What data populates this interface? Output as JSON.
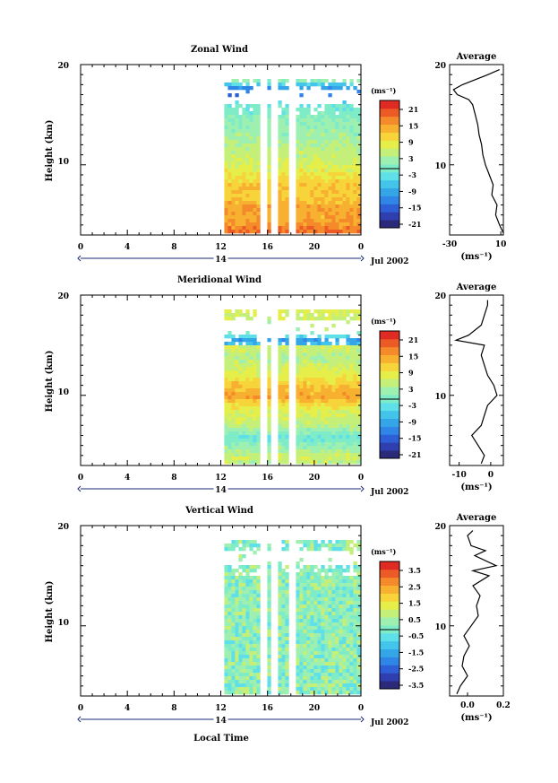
{
  "chart_data": [
    {
      "type": "heatmap",
      "title": "Zonal Wind",
      "ylabel": "Height (km)",
      "yticks": [
        "20",
        "10"
      ],
      "ylim": [
        3,
        20
      ],
      "xlim": [
        0,
        24
      ],
      "xticks": [
        "0",
        "4",
        "8",
        "12",
        "16",
        "20",
        "0"
      ],
      "date_center": "14",
      "date_label": "Jul 2002",
      "colorbar": {
        "unit": "(ms⁻¹)",
        "labels": [
          "21",
          "15",
          "9",
          "3",
          "-3",
          "-9",
          "-15",
          "-21"
        ],
        "min": -24,
        "max": 24
      },
      "data_gaps_hours": [
        [
          15.4,
          15.9
        ],
        [
          16.3,
          16.8
        ],
        [
          17.8,
          18.4
        ]
      ],
      "data_start_hour": 12.3,
      "profile": {
        "title": "Average",
        "xticks": [
          "-30",
          "10"
        ],
        "xlim": [
          -30,
          12
        ],
        "xlabel": "(ms⁻¹)",
        "yticks": [
          "20",
          "10"
        ],
        "height_km": [
          3.2,
          4,
          5,
          6,
          7,
          8,
          9,
          10,
          11,
          12,
          13,
          14,
          15,
          16,
          16.5,
          17,
          17.5,
          18,
          18.5,
          19,
          19.5
        ],
        "values": [
          12,
          9,
          6,
          7,
          3,
          4,
          1,
          -2,
          -4,
          -5,
          -7,
          -8,
          -10,
          -12,
          -15,
          -24,
          -27,
          -20,
          -10,
          0,
          9
        ]
      }
    },
    {
      "type": "heatmap",
      "title": "Meridional Wind",
      "ylabel": "Height (km)",
      "yticks": [
        "20",
        "10"
      ],
      "ylim": [
        3,
        20
      ],
      "xlim": [
        0,
        24
      ],
      "xticks": [
        "0",
        "4",
        "8",
        "12",
        "16",
        "20",
        "0"
      ],
      "date_center": "14",
      "date_label": "Jul 2002",
      "colorbar": {
        "unit": "(ms⁻¹)",
        "labels": [
          "21",
          "15",
          "9",
          "3",
          "-3",
          "-9",
          "-15",
          "-21"
        ],
        "min": -24,
        "max": 24
      },
      "data_gaps_hours": [
        [
          15.4,
          15.9
        ],
        [
          16.3,
          16.8
        ],
        [
          17.8,
          18.4
        ]
      ],
      "data_start_hour": 12.3,
      "profile": {
        "title": "Average",
        "xticks": [
          "-10",
          "0"
        ],
        "xlim": [
          -13,
          4
        ],
        "xlabel": "(ms⁻¹)",
        "yticks": [
          "20",
          "10"
        ],
        "height_km": [
          3.2,
          4,
          5,
          6,
          7,
          8,
          9,
          10,
          11,
          12,
          13,
          14,
          15,
          15.5,
          16,
          17,
          18,
          19,
          19.5
        ],
        "values": [
          -3,
          -2,
          -4,
          -6,
          -3,
          -2,
          -1,
          2,
          1,
          -1,
          -2,
          -3,
          -2,
          -11,
          -7,
          -3,
          -2,
          -1,
          -1
        ]
      }
    },
    {
      "type": "heatmap",
      "title": "Vertical Wind",
      "ylabel": "Height (km)",
      "yticks": [
        "20",
        "10"
      ],
      "ylim": [
        3,
        20
      ],
      "xlim": [
        0,
        24
      ],
      "xticks": [
        "0",
        "4",
        "8",
        "12",
        "16",
        "20",
        "0"
      ],
      "date_center": "14",
      "date_label": "Jul 2002",
      "xlabel": "Local Time",
      "colorbar": {
        "unit": "(ms⁻¹)",
        "labels": [
          "3.5",
          "2.5",
          "1.5",
          "0.5",
          "-0.5",
          "-1.5",
          "-2.5",
          "-3.5"
        ],
        "min": -4,
        "max": 4
      },
      "data_gaps_hours": [
        [
          15.4,
          15.9
        ],
        [
          16.3,
          16.8
        ],
        [
          17.8,
          18.4
        ]
      ],
      "data_start_hour": 12.3,
      "profile": {
        "title": "Average",
        "xticks": [
          "0.0",
          "0.2"
        ],
        "xlim": [
          -0.1,
          0.2
        ],
        "xlabel": "(ms⁻¹)",
        "yticks": [
          "20",
          "10"
        ],
        "height_km": [
          3.2,
          4,
          5,
          6,
          7,
          8,
          9,
          10,
          11,
          12,
          13,
          14,
          15,
          15.5,
          16,
          17,
          17.5,
          18,
          19,
          19.5
        ],
        "values": [
          -0.06,
          -0.04,
          0.0,
          -0.03,
          -0.02,
          0.01,
          -0.02,
          0.02,
          0.06,
          0.05,
          0.07,
          0.03,
          0.12,
          0.03,
          0.16,
          0.04,
          0.1,
          0.02,
          0.0,
          0.03
        ]
      }
    }
  ]
}
